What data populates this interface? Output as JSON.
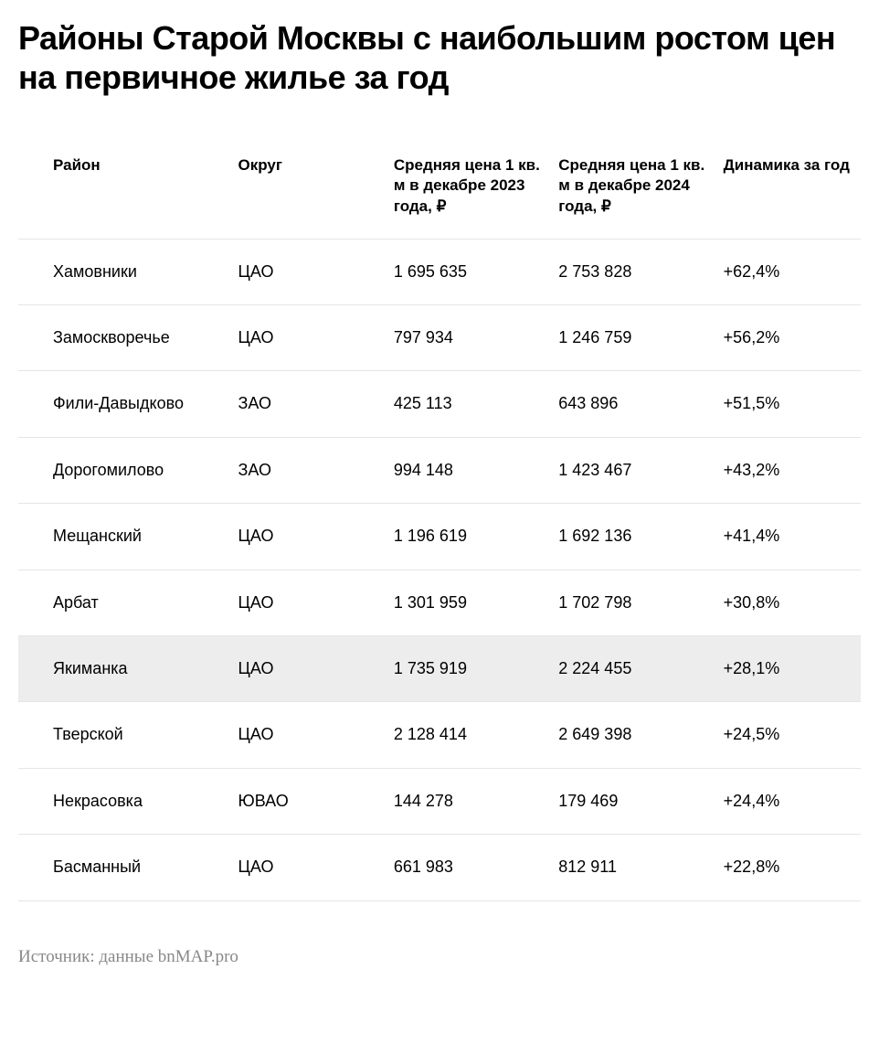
{
  "title": "Районы Старой Москвы с наибольшим ростом цен на первичное жилье за год",
  "columns": {
    "district": "Район",
    "okrug": "Округ",
    "price2023": "Средняя цена 1 кв. м в декабре 2023 года, ₽",
    "price2024": "Средняя цена 1 кв. м в декабре 2024 года, ₽",
    "dynamics": "Динамика за год"
  },
  "rows": [
    {
      "district": "Хамовники",
      "okrug": "ЦАО",
      "price2023": "1 695 635",
      "price2024": "2 753 828",
      "dynamics": "+62,4%",
      "highlighted": false
    },
    {
      "district": "Замоскворечье",
      "okrug": "ЦАО",
      "price2023": "797 934",
      "price2024": "1 246 759",
      "dynamics": "+56,2%",
      "highlighted": false
    },
    {
      "district": "Фили-Давыдково",
      "okrug": "ЗАО",
      "price2023": "425 113",
      "price2024": "643 896",
      "dynamics": "+51,5%",
      "highlighted": false
    },
    {
      "district": "Дорогомилово",
      "okrug": "ЗАО",
      "price2023": "994 148",
      "price2024": "1 423 467",
      "dynamics": "+43,2%",
      "highlighted": false
    },
    {
      "district": "Мещанский",
      "okrug": "ЦАО",
      "price2023": "1 196 619",
      "price2024": "1 692 136",
      "dynamics": "+41,4%",
      "highlighted": false
    },
    {
      "district": "Арбат",
      "okrug": "ЦАО",
      "price2023": "1 301 959",
      "price2024": "1 702 798",
      "dynamics": "+30,8%",
      "highlighted": false
    },
    {
      "district": "Якиманка",
      "okrug": "ЦАО",
      "price2023": "1 735 919",
      "price2024": "2 224 455",
      "dynamics": "+28,1%",
      "highlighted": true
    },
    {
      "district": "Тверской",
      "okrug": "ЦАО",
      "price2023": "2 128 414",
      "price2024": "2 649 398",
      "dynamics": "+24,5%",
      "highlighted": false
    },
    {
      "district": "Некрасовка",
      "okrug": "ЮВАО",
      "price2023": "144 278",
      "price2024": "179 469",
      "dynamics": "+24,4%",
      "highlighted": false
    },
    {
      "district": "Басманный",
      "okrug": "ЦАО",
      "price2023": "661 983",
      "price2024": "812 911",
      "dynamics": "+22,8%",
      "highlighted": false
    }
  ],
  "source": "Источник: данные bnMAP.pro",
  "styling": {
    "title_fontsize": 36,
    "title_fontweight": 800,
    "header_fontsize": 17,
    "cell_fontsize": 18,
    "source_fontsize": 19,
    "text_color": "#000000",
    "border_color": "#e5e5e5",
    "highlight_bg": "#ededed",
    "source_color": "#888888",
    "background_color": "#ffffff"
  }
}
